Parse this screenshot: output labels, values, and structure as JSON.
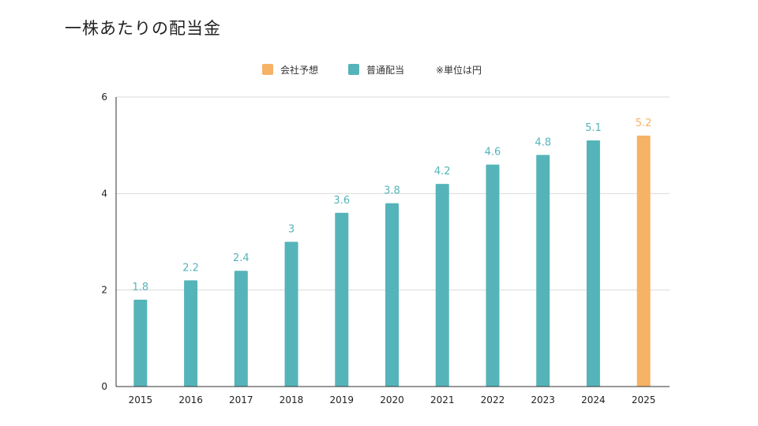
{
  "title": "一株あたりの配当金",
  "colors": {
    "actual": "#55b4ba",
    "forecast": "#f6b266",
    "grid": "#d9d9d9",
    "axis": "#333333"
  },
  "legend": {
    "forecast_label": "会社予想",
    "actual_label": "普通配当",
    "unit_note": "※単位は円"
  },
  "chart_data": {
    "type": "bar",
    "title": "",
    "xlabel": "",
    "ylabel": "",
    "ylim": [
      0,
      6
    ],
    "yticks": [
      0,
      2,
      4,
      6
    ],
    "grid": true,
    "legend_position": "top",
    "categories": [
      "2015",
      "2016",
      "2017",
      "2018",
      "2019",
      "2020",
      "2021",
      "2022",
      "2023",
      "2024",
      "2025"
    ],
    "values": [
      1.8,
      2.2,
      2.4,
      3,
      3.6,
      3.8,
      4.2,
      4.6,
      4.8,
      5.1,
      5.2
    ],
    "value_labels": [
      "1.8",
      "2.2",
      "2.4",
      "3",
      "3.6",
      "3.8",
      "4.2",
      "4.6",
      "4.8",
      "5.1",
      "5.2"
    ],
    "series_kind": [
      "actual",
      "actual",
      "actual",
      "actual",
      "actual",
      "actual",
      "actual",
      "actual",
      "actual",
      "actual",
      "forecast"
    ]
  }
}
